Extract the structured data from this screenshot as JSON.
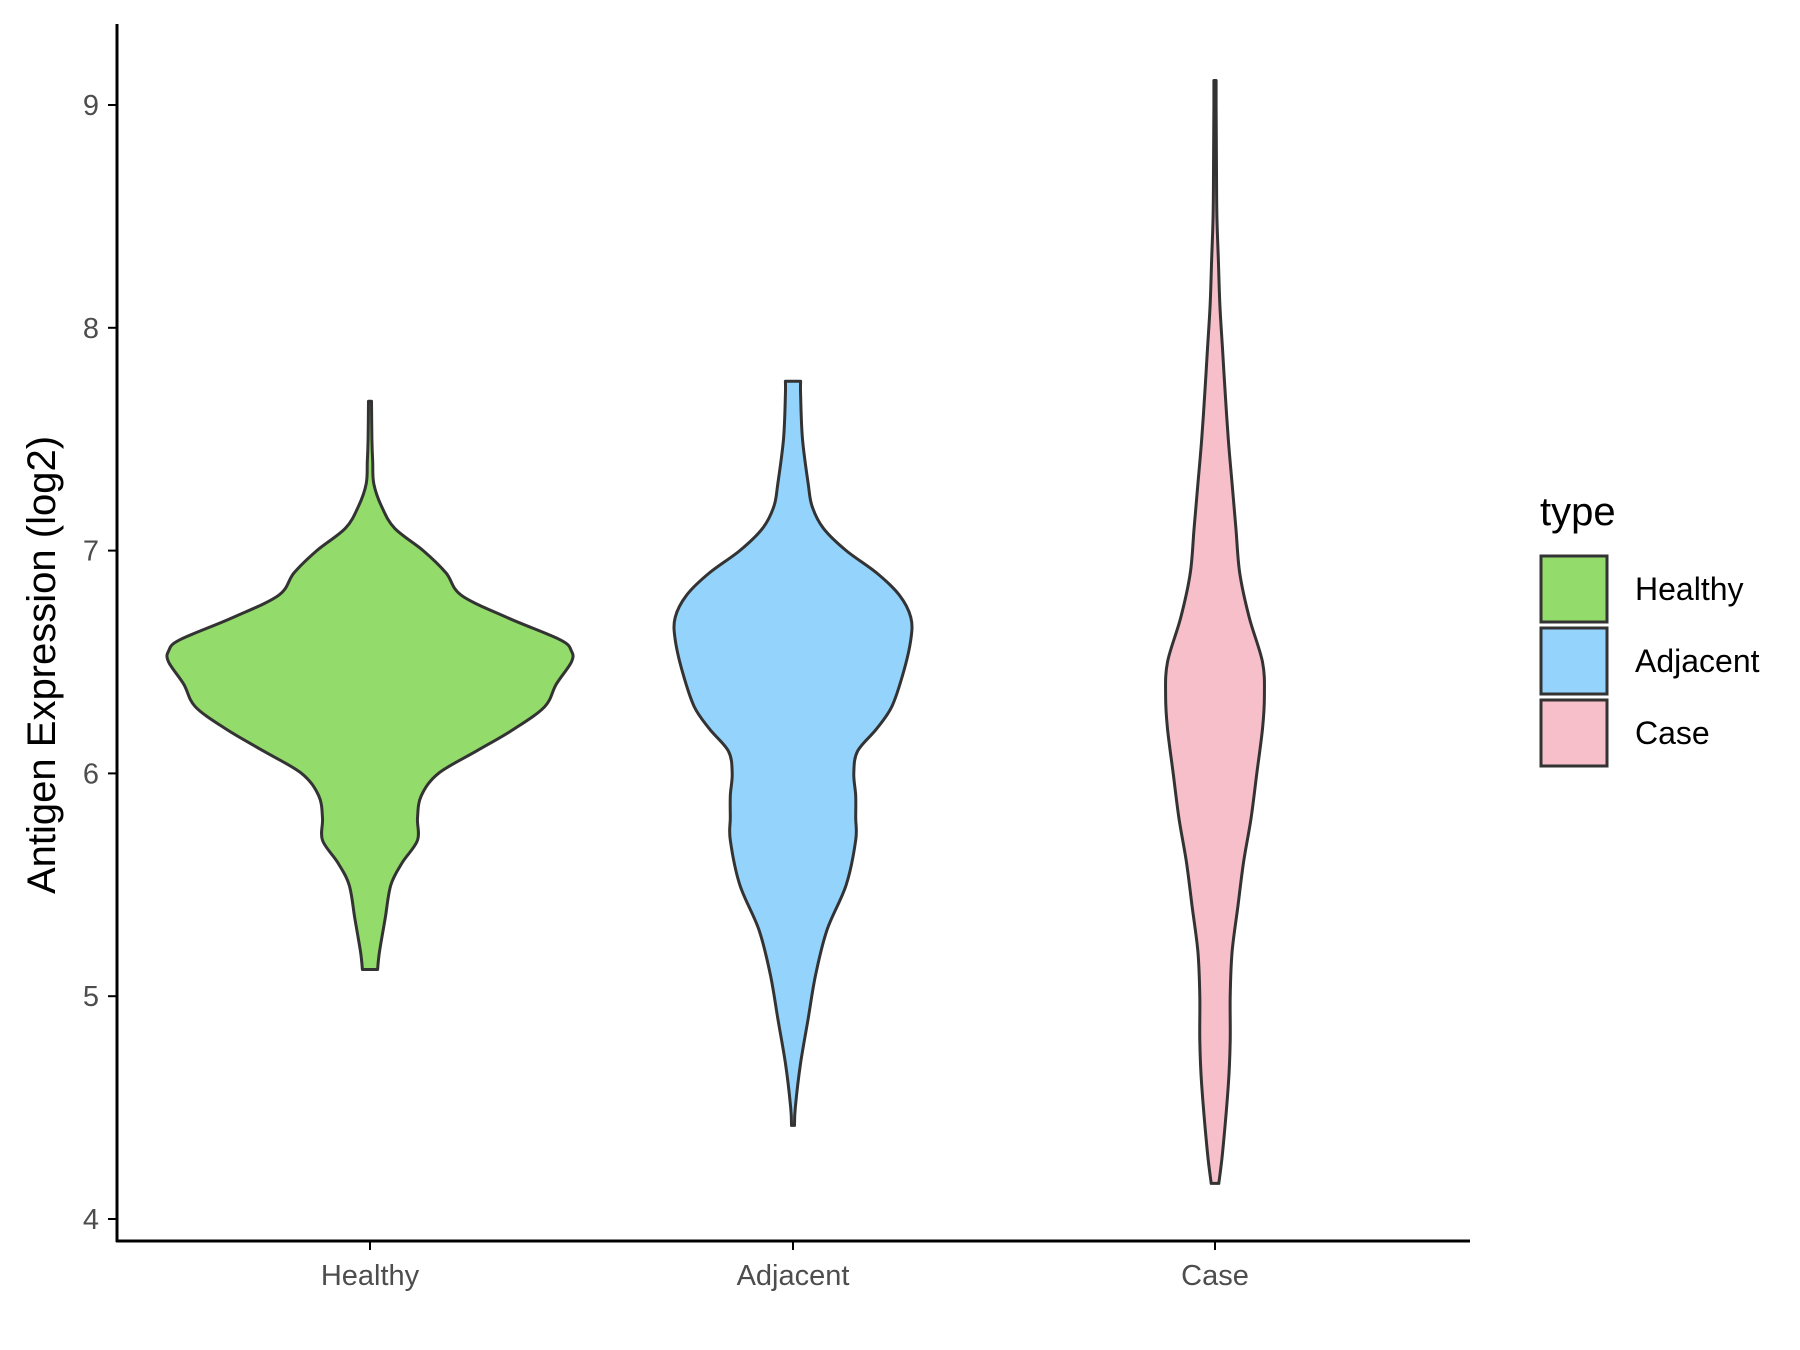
{
  "chart_data": {
    "type": "violin",
    "ylabel": "Antigen Expression (log2)",
    "xlabel": "",
    "ylim": [
      3.95,
      9.37
    ],
    "yticks": [
      4,
      5,
      6,
      7,
      8,
      9
    ],
    "categories": [
      "Healthy",
      "Adjacent",
      "Case"
    ],
    "grid": false,
    "legend": {
      "title": "type",
      "placement": "right",
      "entries": [
        "Healthy",
        "Adjacent",
        "Case"
      ]
    },
    "series": [
      {
        "name": "Healthy",
        "color": "#93db6b",
        "min": 5.12,
        "max": 7.67,
        "profile": [
          [
            5.12,
            0.02
          ],
          [
            5.2,
            0.025
          ],
          [
            5.35,
            0.04
          ],
          [
            5.5,
            0.055
          ],
          [
            5.6,
            0.085
          ],
          [
            5.7,
            0.125
          ],
          [
            5.8,
            0.125
          ],
          [
            5.9,
            0.135
          ],
          [
            6.0,
            0.18
          ],
          [
            6.1,
            0.28
          ],
          [
            6.2,
            0.38
          ],
          [
            6.3,
            0.46
          ],
          [
            6.4,
            0.49
          ],
          [
            6.5,
            0.53
          ],
          [
            6.55,
            0.53
          ],
          [
            6.6,
            0.5
          ],
          [
            6.7,
            0.36
          ],
          [
            6.8,
            0.24
          ],
          [
            6.9,
            0.2
          ],
          [
            7.0,
            0.14
          ],
          [
            7.1,
            0.065
          ],
          [
            7.2,
            0.03
          ],
          [
            7.3,
            0.01
          ],
          [
            7.4,
            0.007
          ],
          [
            7.5,
            0.005
          ],
          [
            7.67,
            0.004
          ]
        ]
      },
      {
        "name": "Adjacent",
        "color": "#94d3fc",
        "min": 4.42,
        "max": 7.76,
        "profile": [
          [
            4.42,
            0.004
          ],
          [
            4.5,
            0.006
          ],
          [
            4.7,
            0.02
          ],
          [
            4.9,
            0.04
          ],
          [
            5.1,
            0.06
          ],
          [
            5.3,
            0.09
          ],
          [
            5.5,
            0.14
          ],
          [
            5.7,
            0.165
          ],
          [
            5.8,
            0.165
          ],
          [
            5.9,
            0.165
          ],
          [
            6.0,
            0.16
          ],
          [
            6.1,
            0.17
          ],
          [
            6.2,
            0.22
          ],
          [
            6.3,
            0.26
          ],
          [
            6.45,
            0.29
          ],
          [
            6.6,
            0.31
          ],
          [
            6.7,
            0.31
          ],
          [
            6.8,
            0.28
          ],
          [
            6.9,
            0.22
          ],
          [
            7.0,
            0.14
          ],
          [
            7.1,
            0.08
          ],
          [
            7.2,
            0.05
          ],
          [
            7.3,
            0.04
          ],
          [
            7.5,
            0.025
          ],
          [
            7.7,
            0.02
          ],
          [
            7.76,
            0.02
          ]
        ]
      },
      {
        "name": "Case",
        "color": "#f7bfca",
        "min": 4.16,
        "max": 9.11,
        "profile": [
          [
            4.16,
            0.01
          ],
          [
            4.3,
            0.02
          ],
          [
            4.6,
            0.035
          ],
          [
            4.8,
            0.04
          ],
          [
            5.0,
            0.04
          ],
          [
            5.2,
            0.045
          ],
          [
            5.4,
            0.06
          ],
          [
            5.6,
            0.075
          ],
          [
            5.8,
            0.095
          ],
          [
            6.0,
            0.11
          ],
          [
            6.2,
            0.125
          ],
          [
            6.35,
            0.13
          ],
          [
            6.5,
            0.125
          ],
          [
            6.7,
            0.09
          ],
          [
            6.9,
            0.065
          ],
          [
            7.1,
            0.055
          ],
          [
            7.3,
            0.045
          ],
          [
            7.5,
            0.035
          ],
          [
            7.7,
            0.027
          ],
          [
            7.9,
            0.02
          ],
          [
            8.1,
            0.013
          ],
          [
            8.3,
            0.009
          ],
          [
            8.5,
            0.005
          ],
          [
            8.7,
            0.004
          ],
          [
            9.0,
            0.003
          ],
          [
            9.11,
            0.003
          ]
        ]
      }
    ]
  }
}
